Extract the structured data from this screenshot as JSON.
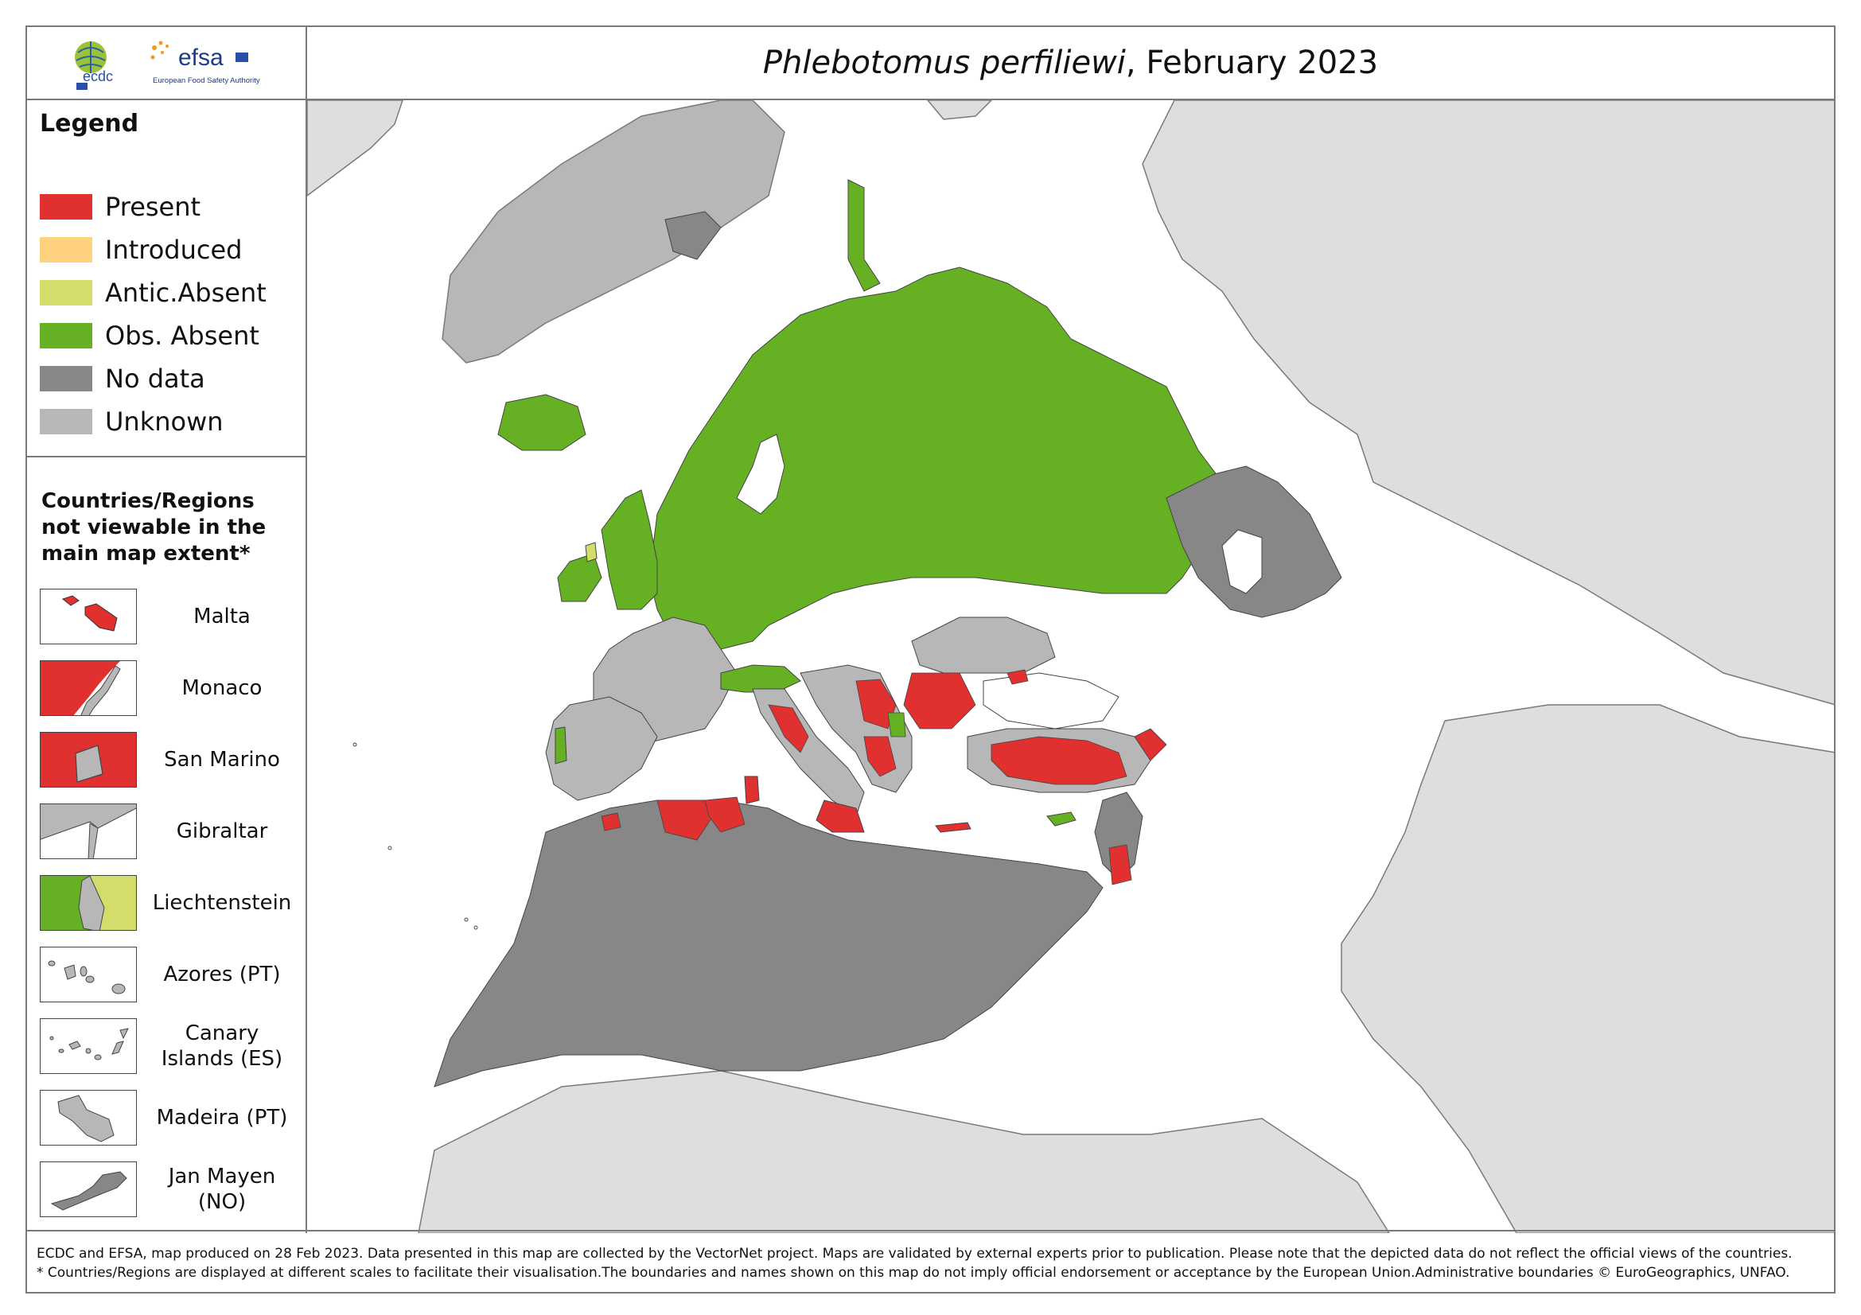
{
  "title": {
    "species": "Phlebotomus perfiliewi",
    "date": ", February 2023"
  },
  "logos": {
    "ecdc": "ecdc",
    "efsa": "efsa",
    "efsa_sub": "European Food Safety Authority"
  },
  "legend": {
    "title": "Legend",
    "items": [
      {
        "label": "Present",
        "color": "#e03030"
      },
      {
        "label": "Introduced",
        "color": "#ffd27f"
      },
      {
        "label": "Antic.Absent",
        "color": "#d4dc6a"
      },
      {
        "label": "Obs. Absent",
        "color": "#66b024"
      },
      {
        "label": "No data",
        "color": "#878787"
      },
      {
        "label": "Unknown",
        "color": "#b7b7b7"
      }
    ],
    "inset_title_lines": [
      "Countries/Regions",
      "not viewable in the",
      "main map extent*"
    ],
    "insets": [
      {
        "label": "Malta",
        "icon": "malta-icon"
      },
      {
        "label": "Monaco",
        "icon": "monaco-icon"
      },
      {
        "label": "San Marino",
        "icon": "san-marino-icon"
      },
      {
        "label": "Gibraltar",
        "icon": "gibraltar-icon"
      },
      {
        "label": "Liechtenstein",
        "icon": "liechtenstein-icon"
      },
      {
        "label": "Azores (PT)",
        "icon": "azores-icon"
      },
      {
        "label": "Canary Islands (ES)",
        "icon": "canary-islands-icon"
      },
      {
        "label": "Madeira (PT)",
        "icon": "madeira-icon"
      },
      {
        "label": "Jan Mayen (NO)",
        "icon": "jan-mayen-icon"
      }
    ]
  },
  "footer": {
    "line1": "ECDC and EFSA, map produced on 28 Feb 2023. Data presented in this map are collected by the VectorNet project. Maps are validated by external experts prior to publication. Please note that the depicted data do not reflect the official views of the countries.",
    "line2": "* Countries/Regions are displayed at different scales to facilitate their visualisation.The boundaries and names shown on this map do not imply official endorsement or acceptance by the European Union.Administrative boundaries © EuroGeographics, UNFAO."
  },
  "colors": {
    "present": "#e03030",
    "introduced": "#ffd27f",
    "antic_absent": "#d4dc6a",
    "obs_absent": "#66b024",
    "no_data": "#878787",
    "unknown": "#b7b7b7",
    "outside": "#dedede",
    "sea": "#ffffff"
  }
}
